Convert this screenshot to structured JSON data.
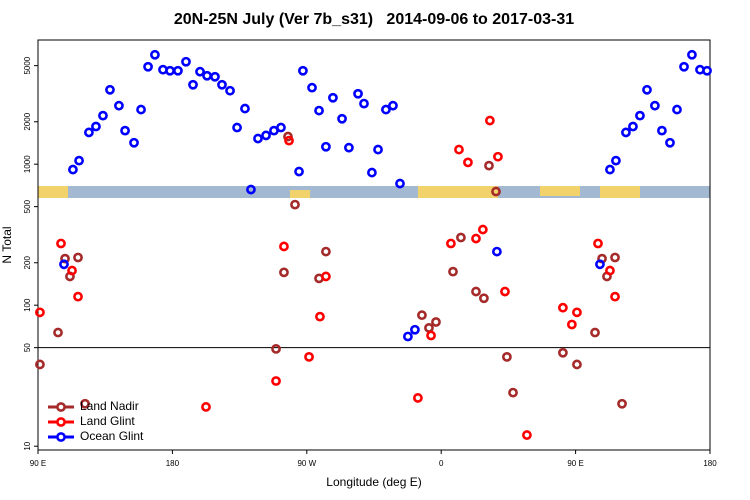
{
  "chart_data": {
    "type": "scatter",
    "title": "20N-25N July (Ver 7b_s31)   2014-09-06 to 2017-03-31",
    "x_label": "Longitude (deg E)",
    "y_label": "N Total",
    "log_y": true,
    "xlim": [
      90,
      540
    ],
    "ylim": [
      9.4,
      7600
    ],
    "xticks": [
      {
        "value": 90,
        "label": "90 E"
      },
      180,
      {
        "value": 270,
        "label": "90 W"
      },
      {
        "value": 360,
        "label": "0"
      },
      {
        "value": 450,
        "label": "90 E"
      },
      180
    ],
    "yticks": [
      10,
      50,
      100,
      200,
      500,
      1000,
      2000,
      5000
    ],
    "hline": 50,
    "legend_position": "lower-left",
    "series": [
      {
        "name": "Land Nadir",
        "color": "#a52a2a",
        "x": [
          91.3,
          103.4,
          108.1,
          111.4,
          116.8,
          121.5,
          249.4,
          254.7,
          257.4,
          262.1,
          278.2,
          282.8,
          347.1,
          351.8,
          356.5,
          367.9,
          373.2,
          383.3,
          388.6,
          392.0,
          396.7,
          404.0,
          408.1,
          441.5,
          450.9,
          463.0,
          467.7,
          471.0,
          476.4,
          481.1
        ],
        "values": [
          38,
          64,
          214,
          160,
          218,
          20,
          49,
          171,
          1570,
          517,
          155,
          240,
          85,
          69,
          76,
          173,
          302,
          125,
          112,
          977,
          640,
          43,
          24,
          46,
          38,
          64,
          214,
          160,
          218,
          20
        ]
      },
      {
        "name": "Land Glint",
        "color": "#ff0000",
        "x": [
          91.3,
          105.4,
          112.8,
          116.8,
          202.5,
          249.4,
          254.7,
          258.1,
          271.5,
          278.8,
          282.8,
          344.4,
          353.2,
          366.5,
          371.9,
          377.9,
          383.3,
          387.9,
          392.6,
          398.0,
          402.7,
          417.4,
          441.5,
          447.5,
          450.9,
          465.0,
          473.0,
          476.4
        ],
        "values": [
          89,
          274,
          176,
          115,
          19,
          29,
          261,
          1470,
          43,
          83,
          160,
          22,
          61,
          274,
          1270,
          1030,
          297,
          344,
          2040,
          1130,
          125,
          12,
          96,
          73,
          89,
          274,
          176,
          115
        ]
      },
      {
        "name": "Ocean Glint",
        "color": "#0000ff",
        "x": [
          107.4,
          113.4,
          117.5,
          124.1,
          128.8,
          133.5,
          138.2,
          144.2,
          148.3,
          154.3,
          159.0,
          163.7,
          168.3,
          173.7,
          178.4,
          183.7,
          189.1,
          193.8,
          198.5,
          203.2,
          208.5,
          213.2,
          218.6,
          223.3,
          228.6,
          232.6,
          237.3,
          242.7,
          248.0,
          252.7,
          264.8,
          267.4,
          273.5,
          278.2,
          282.8,
          287.5,
          293.6,
          298.2,
          304.3,
          308.3,
          313.6,
          317.7,
          323.0,
          327.7,
          332.4,
          337.7,
          342.4,
          397.3,
          466.3,
          473.0,
          477.0,
          483.7,
          488.4,
          493.1,
          497.8,
          503.1,
          507.8,
          513.2,
          517.9,
          522.6,
          527.9,
          533.3,
          538.0
        ],
        "values": [
          195,
          916,
          1060,
          1680,
          1850,
          2210,
          3370,
          2600,
          1730,
          1420,
          2440,
          4910,
          5970,
          4680,
          4600,
          4600,
          5330,
          3660,
          4530,
          4240,
          4170,
          3660,
          3320,
          1820,
          2480,
          661,
          1520,
          1600,
          1730,
          1820,
          887,
          4600,
          3490,
          2400,
          1330,
          2960,
          2100,
          1310,
          3160,
          2690,
          872,
          1270,
          2440,
          2600,
          729,
          60,
          67,
          240,
          195,
          916,
          1060,
          1680,
          1850,
          2210,
          3370,
          2600,
          1730,
          1420,
          2440,
          4910,
          5970,
          4680,
          4600
        ]
      }
    ]
  }
}
